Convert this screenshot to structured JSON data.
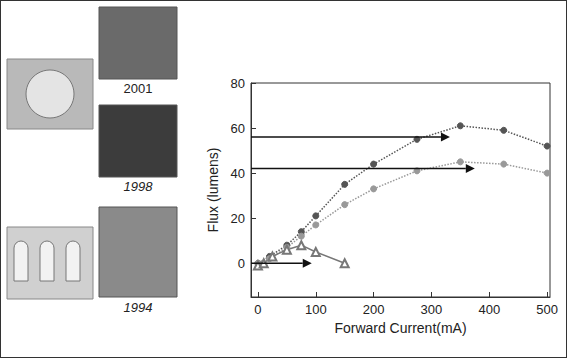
{
  "chart_data": {
    "type": "line",
    "x_label": "Forward Current(mA)",
    "y_label": "Flux (lumens)",
    "xlim": [
      -12,
      505
    ],
    "xticks": [
      0,
      100,
      200,
      300,
      400,
      500
    ],
    "ylim": [
      -15,
      80
    ],
    "yticks": [
      0,
      20,
      40,
      60,
      80
    ],
    "grid": false,
    "series": [
      {
        "name": "2001",
        "color": "#555555",
        "marker": "circle",
        "line_style": "dotted",
        "x": [
          0,
          20,
          50,
          75,
          100,
          150,
          200,
          275,
          350,
          425,
          500
        ],
        "values": [
          0,
          3,
          8,
          14,
          21,
          35,
          44,
          55,
          61,
          59,
          52
        ]
      },
      {
        "name": "1998",
        "color": "#999999",
        "marker": "circle",
        "line_style": "dotted",
        "x": [
          0,
          20,
          50,
          75,
          100,
          150,
          200,
          275,
          350,
          425,
          500
        ],
        "values": [
          0,
          2,
          7,
          12,
          17,
          26,
          33,
          41,
          45,
          44,
          40
        ]
      },
      {
        "name": "1994",
        "color": "#777777",
        "marker": "triangle",
        "line_style": "solid",
        "x": [
          0,
          10,
          25,
          50,
          75,
          100,
          150
        ],
        "values": [
          -1,
          0,
          3,
          6,
          8,
          5,
          0
        ]
      }
    ],
    "arrows": [
      {
        "y": 56,
        "x_end": 332
      },
      {
        "y": 42,
        "x_end": 375
      },
      {
        "y": 0,
        "x_end": 93
      }
    ]
  }
}
